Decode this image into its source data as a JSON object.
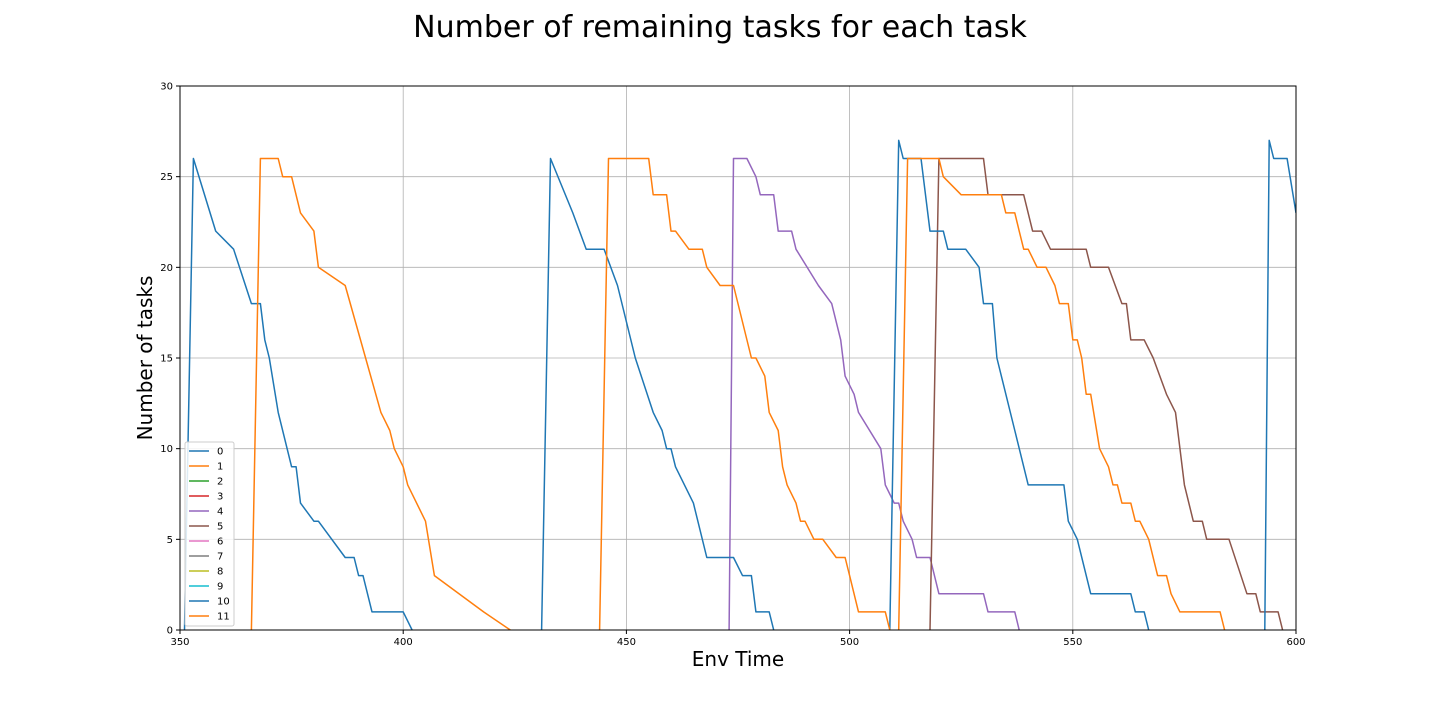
{
  "chart_data": {
    "type": "line",
    "title": "Number of remaining tasks for each task",
    "xlabel": "Env Time",
    "ylabel": "Number of tasks",
    "xlim": [
      350,
      600
    ],
    "ylim": [
      0,
      30
    ],
    "xticks": [
      350,
      400,
      450,
      500,
      550,
      600
    ],
    "yticks": [
      0,
      5,
      10,
      15,
      20,
      25,
      30
    ],
    "grid": true,
    "legend_position": "lower-left",
    "series": [
      {
        "name": "0",
        "color": "#1f77b4",
        "points": [
          [
            351,
            0
          ],
          [
            353,
            26
          ],
          [
            358,
            22
          ],
          [
            362,
            21
          ],
          [
            366,
            18
          ],
          [
            368,
            18
          ],
          [
            369,
            16
          ],
          [
            370,
            15
          ],
          [
            372,
            12
          ],
          [
            375,
            9
          ],
          [
            376,
            9
          ],
          [
            377,
            7
          ],
          [
            380,
            6
          ],
          [
            381,
            6
          ],
          [
            387,
            4
          ],
          [
            389,
            4
          ],
          [
            390,
            3
          ],
          [
            391,
            3
          ],
          [
            393,
            1
          ],
          [
            400,
            1
          ],
          [
            402,
            0
          ]
        ]
      },
      {
        "name": "1",
        "color": "#ff7f0e",
        "points": [
          [
            366,
            0
          ],
          [
            368,
            26
          ],
          [
            372,
            26
          ],
          [
            373,
            25
          ],
          [
            375,
            25
          ],
          [
            377,
            23
          ],
          [
            380,
            22
          ],
          [
            381,
            20
          ],
          [
            387,
            19
          ],
          [
            395,
            12
          ],
          [
            397,
            11
          ],
          [
            398,
            10
          ],
          [
            400,
            9
          ],
          [
            401,
            8
          ],
          [
            405,
            6
          ],
          [
            407,
            3
          ],
          [
            418,
            1
          ],
          [
            424,
            0
          ]
        ]
      },
      {
        "name": "2",
        "color": "#2ca02c",
        "points": []
      },
      {
        "name": "3",
        "color": "#d62728",
        "points": []
      },
      {
        "name": "4",
        "color": "#9467bd",
        "points": [
          [
            473,
            0
          ],
          [
            474,
            26
          ],
          [
            477,
            26
          ],
          [
            479,
            25
          ],
          [
            480,
            24
          ],
          [
            483,
            24
          ],
          [
            484,
            22
          ],
          [
            487,
            22
          ],
          [
            488,
            21
          ],
          [
            493,
            19
          ],
          [
            496,
            18
          ],
          [
            498,
            16
          ],
          [
            499,
            14
          ],
          [
            501,
            13
          ],
          [
            502,
            12
          ],
          [
            507,
            10
          ],
          [
            508,
            8
          ],
          [
            510,
            7
          ],
          [
            511,
            7
          ],
          [
            512,
            6
          ],
          [
            514,
            5
          ],
          [
            515,
            4
          ],
          [
            518,
            4
          ],
          [
            520,
            2
          ],
          [
            530,
            2
          ],
          [
            531,
            1
          ],
          [
            537,
            1
          ],
          [
            538,
            0
          ]
        ]
      },
      {
        "name": "5",
        "color": "#8c564b",
        "points": [
          [
            518,
            0
          ],
          [
            520,
            26
          ],
          [
            530,
            26
          ],
          [
            531,
            24
          ],
          [
            539,
            24
          ],
          [
            541,
            22
          ],
          [
            543,
            22
          ],
          [
            545,
            21
          ],
          [
            553,
            21
          ],
          [
            554,
            20
          ],
          [
            558,
            20
          ],
          [
            561,
            18
          ],
          [
            562,
            18
          ],
          [
            563,
            16
          ],
          [
            566,
            16
          ],
          [
            568,
            15
          ],
          [
            571,
            13
          ],
          [
            573,
            12
          ],
          [
            575,
            8
          ],
          [
            577,
            6
          ],
          [
            579,
            6
          ],
          [
            580,
            5
          ],
          [
            585,
            5
          ],
          [
            589,
            2
          ],
          [
            591,
            2
          ],
          [
            592,
            1
          ],
          [
            596,
            1
          ],
          [
            597,
            0
          ]
        ]
      },
      {
        "name": "6",
        "color": "#e377c2",
        "points": []
      },
      {
        "name": "7",
        "color": "#7f7f7f",
        "points": []
      },
      {
        "name": "8",
        "color": "#bcbd22",
        "points": []
      },
      {
        "name": "9",
        "color": "#17becf",
        "points": []
      },
      {
        "name": "10",
        "color": "#1f77b4",
        "points": [
          [
            431,
            0
          ],
          [
            433,
            26
          ],
          [
            438,
            23
          ],
          [
            441,
            21
          ],
          [
            445,
            21
          ],
          [
            448,
            19
          ],
          [
            452,
            15
          ],
          [
            456,
            12
          ],
          [
            458,
            11
          ],
          [
            459,
            10
          ],
          [
            460,
            10
          ],
          [
            461,
            9
          ],
          [
            465,
            7
          ],
          [
            468,
            4
          ],
          [
            474,
            4
          ],
          [
            476,
            3
          ],
          [
            478,
            3
          ],
          [
            479,
            1
          ],
          [
            482,
            1
          ],
          [
            483,
            0
          ],
          null,
          [
            509,
            0
          ],
          [
            511,
            27
          ],
          [
            512,
            26
          ],
          [
            516,
            26
          ],
          [
            517,
            24
          ],
          [
            518,
            22
          ],
          [
            521,
            22
          ],
          [
            522,
            21
          ],
          [
            526,
            21
          ],
          [
            529,
            20
          ],
          [
            530,
            18
          ],
          [
            532,
            18
          ],
          [
            533,
            15
          ],
          [
            537,
            11
          ],
          [
            540,
            8
          ],
          [
            548,
            8
          ],
          [
            549,
            6
          ],
          [
            551,
            5
          ],
          [
            554,
            2
          ],
          [
            563,
            2
          ],
          [
            564,
            1
          ],
          [
            566,
            1
          ],
          [
            567,
            0
          ],
          null,
          [
            593,
            0
          ],
          [
            594,
            27
          ],
          [
            595,
            26
          ],
          [
            598,
            26
          ],
          [
            600,
            23
          ]
        ]
      },
      {
        "name": "11",
        "color": "#ff7f0e",
        "points": [
          [
            444,
            0
          ],
          [
            446,
            26
          ],
          [
            455,
            26
          ],
          [
            456,
            24
          ],
          [
            459,
            24
          ],
          [
            460,
            22
          ],
          [
            461,
            22
          ],
          [
            464,
            21
          ],
          [
            467,
            21
          ],
          [
            468,
            20
          ],
          [
            471,
            19
          ],
          [
            474,
            19
          ],
          [
            478,
            15
          ],
          [
            479,
            15
          ],
          [
            481,
            14
          ],
          [
            482,
            12
          ],
          [
            484,
            11
          ],
          [
            485,
            9
          ],
          [
            486,
            8
          ],
          [
            488,
            7
          ],
          [
            489,
            6
          ],
          [
            490,
            6
          ],
          [
            492,
            5
          ],
          [
            494,
            5
          ],
          [
            497,
            4
          ],
          [
            499,
            4
          ],
          [
            500,
            3
          ],
          [
            502,
            1
          ],
          [
            508,
            1
          ],
          [
            509,
            0
          ],
          null,
          [
            511,
            0
          ],
          [
            513,
            26
          ],
          [
            520,
            26
          ],
          [
            521,
            25
          ],
          [
            525,
            24
          ],
          [
            534,
            24
          ],
          [
            535,
            23
          ],
          [
            537,
            23
          ],
          [
            538,
            22
          ],
          [
            539,
            21
          ],
          [
            540,
            21
          ],
          [
            542,
            20
          ],
          [
            544,
            20
          ],
          [
            546,
            19
          ],
          [
            547,
            18
          ],
          [
            549,
            18
          ],
          [
            550,
            16
          ],
          [
            551,
            16
          ],
          [
            552,
            15
          ],
          [
            553,
            13
          ],
          [
            554,
            13
          ],
          [
            556,
            10
          ],
          [
            558,
            9
          ],
          [
            559,
            8
          ],
          [
            560,
            8
          ],
          [
            561,
            7
          ],
          [
            563,
            7
          ],
          [
            564,
            6
          ],
          [
            565,
            6
          ],
          [
            567,
            5
          ],
          [
            569,
            3
          ],
          [
            571,
            3
          ],
          [
            572,
            2
          ],
          [
            574,
            1
          ],
          [
            583,
            1
          ],
          [
            584,
            0
          ]
        ]
      }
    ],
    "legend": [
      "0",
      "1",
      "2",
      "3",
      "4",
      "5",
      "6",
      "7",
      "8",
      "9",
      "10",
      "11"
    ]
  }
}
